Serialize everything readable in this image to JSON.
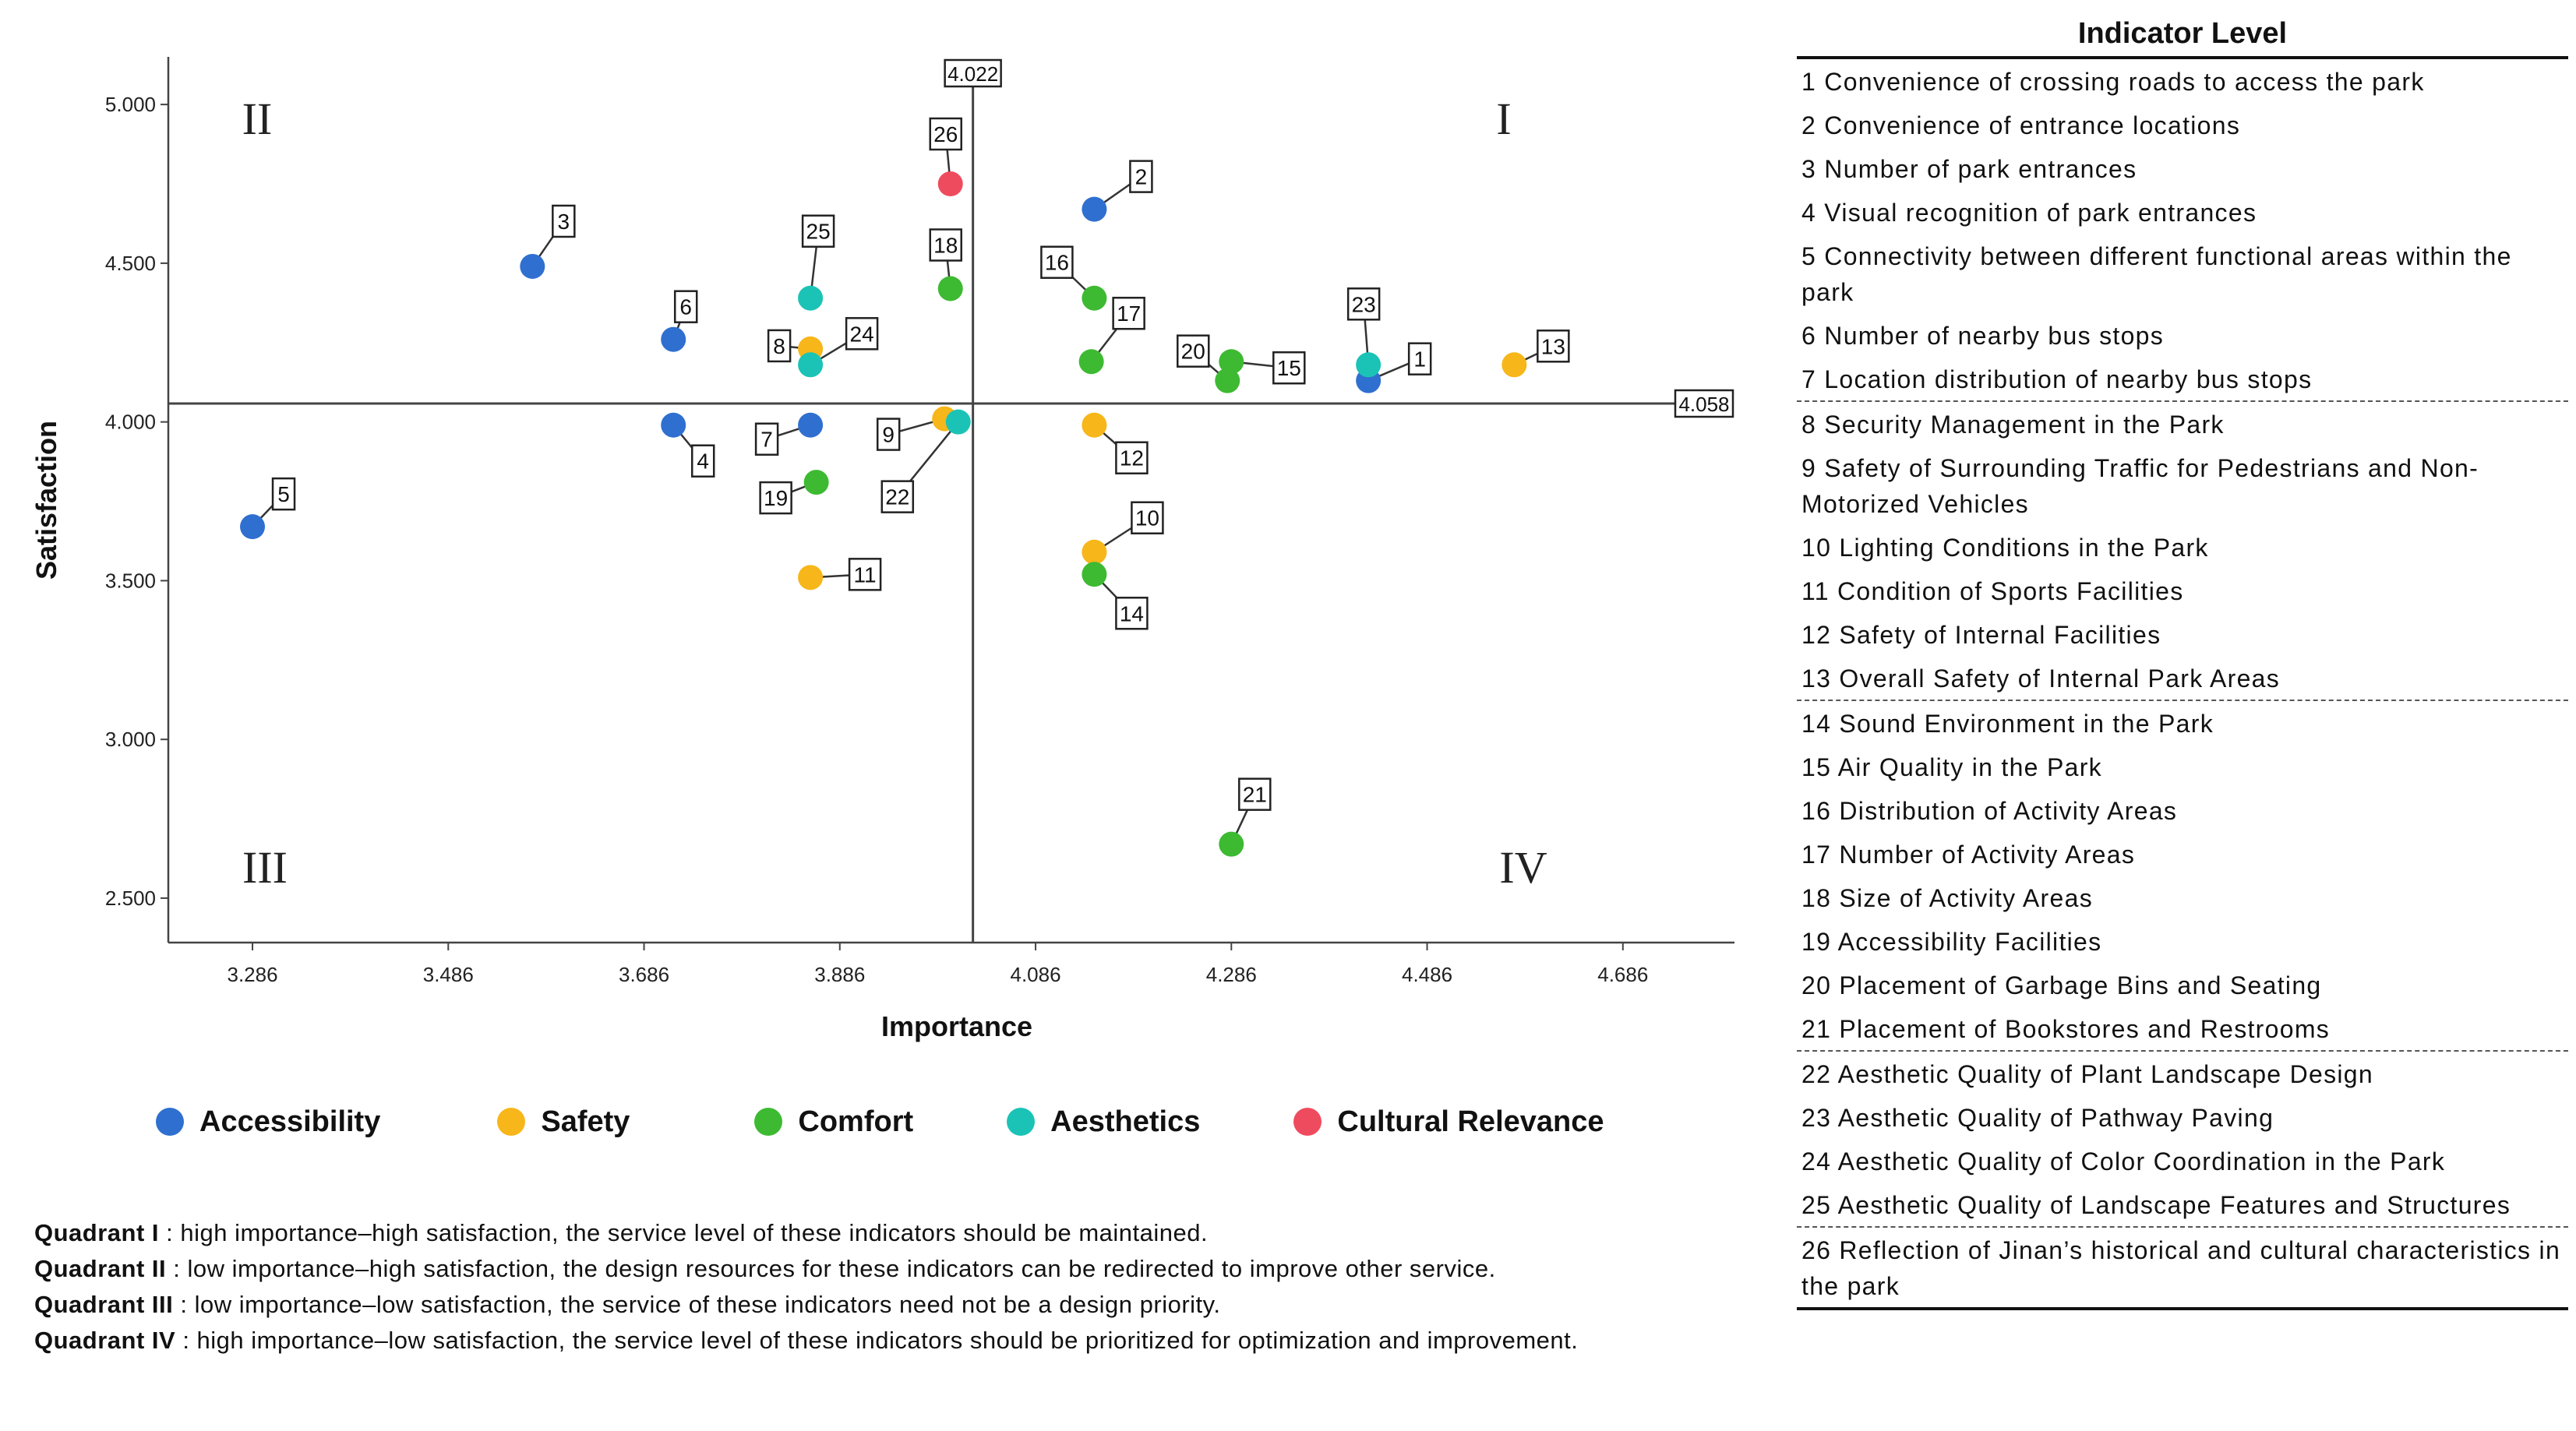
{
  "chart_data": {
    "type": "scatter",
    "xlabel": "Importance",
    "ylabel": "Satisfaction",
    "xlim": [
      3.2,
      4.8
    ],
    "ylim": [
      2.36,
      5.15
    ],
    "x_ticks": [
      "3.286",
      "3.486",
      "3.686",
      "3.886",
      "4.086",
      "4.286",
      "4.486",
      "4.686"
    ],
    "y_ticks": [
      "2.500",
      "3.000",
      "3.500",
      "4.000",
      "4.500",
      "5.000"
    ],
    "x_ref": {
      "value": 4.022,
      "label": "4.022"
    },
    "y_ref": {
      "value": 4.058,
      "label": "4.058"
    },
    "quadrants": {
      "I": "I",
      "II": "II",
      "III": "III",
      "IV": "IV"
    },
    "categories": [
      {
        "name": "Accessibility",
        "color": "#2f6fd0"
      },
      {
        "name": "Safety",
        "color": "#f7b619"
      },
      {
        "name": "Comfort",
        "color": "#3dba32"
      },
      {
        "name": "Aesthetics",
        "color": "#1bc3b6"
      },
      {
        "name": "Cultural Relevance",
        "color": "#ef4b5e"
      }
    ],
    "points": [
      {
        "id": "1",
        "x": 4.426,
        "y": 4.13,
        "category": "Accessibility"
      },
      {
        "id": "2",
        "x": 4.146,
        "y": 4.67,
        "category": "Accessibility"
      },
      {
        "id": "3",
        "x": 3.572,
        "y": 4.49,
        "category": "Accessibility"
      },
      {
        "id": "4",
        "x": 3.716,
        "y": 3.99,
        "category": "Accessibility"
      },
      {
        "id": "5",
        "x": 3.286,
        "y": 3.67,
        "category": "Accessibility"
      },
      {
        "id": "6",
        "x": 3.716,
        "y": 4.26,
        "category": "Accessibility"
      },
      {
        "id": "7",
        "x": 3.856,
        "y": 3.99,
        "category": "Accessibility"
      },
      {
        "id": "8",
        "x": 3.856,
        "y": 4.23,
        "category": "Safety"
      },
      {
        "id": "9",
        "x": 3.993,
        "y": 4.01,
        "category": "Safety"
      },
      {
        "id": "10",
        "x": 4.146,
        "y": 3.59,
        "category": "Safety"
      },
      {
        "id": "11",
        "x": 3.856,
        "y": 3.51,
        "category": "Safety"
      },
      {
        "id": "12",
        "x": 4.146,
        "y": 3.99,
        "category": "Safety"
      },
      {
        "id": "13",
        "x": 4.575,
        "y": 4.18,
        "category": "Safety"
      },
      {
        "id": "14",
        "x": 4.146,
        "y": 3.52,
        "category": "Comfort"
      },
      {
        "id": "15",
        "x": 4.286,
        "y": 4.19,
        "category": "Comfort"
      },
      {
        "id": "16",
        "x": 4.146,
        "y": 4.39,
        "category": "Comfort"
      },
      {
        "id": "17",
        "x": 4.143,
        "y": 4.19,
        "category": "Comfort"
      },
      {
        "id": "18",
        "x": 3.999,
        "y": 4.42,
        "category": "Comfort"
      },
      {
        "id": "19",
        "x": 3.862,
        "y": 3.81,
        "category": "Comfort"
      },
      {
        "id": "20",
        "x": 4.282,
        "y": 4.13,
        "category": "Comfort"
      },
      {
        "id": "21",
        "x": 4.286,
        "y": 2.67,
        "category": "Comfort"
      },
      {
        "id": "22",
        "x": 4.007,
        "y": 4.0,
        "category": "Aesthetics"
      },
      {
        "id": "23",
        "x": 4.426,
        "y": 4.18,
        "category": "Aesthetics"
      },
      {
        "id": "24",
        "x": 3.856,
        "y": 4.18,
        "category": "Aesthetics"
      },
      {
        "id": "25",
        "x": 3.856,
        "y": 4.39,
        "category": "Aesthetics"
      },
      {
        "id": "26",
        "x": 3.999,
        "y": 4.75,
        "category": "Cultural Relevance"
      }
    ]
  },
  "legend": [
    {
      "label": "Accessibility",
      "color": "#2f6fd0"
    },
    {
      "label": "Safety",
      "color": "#f7b619"
    },
    {
      "label": "Comfort",
      "color": "#3dba32"
    },
    {
      "label": "Aesthetics",
      "color": "#1bc3b6"
    },
    {
      "label": "Cultural Relevance",
      "color": "#ef4b5e"
    }
  ],
  "notes": [
    {
      "title": "Quadrant I",
      "text": ": high importance–high satisfaction, the service level of these indicators should be maintained."
    },
    {
      "title": "Quadrant II",
      "text": ": low importance–high satisfaction, the design resources for these indicators can be redirected to improve other service."
    },
    {
      "title": "Quadrant III",
      "text": ": low importance–low satisfaction, the service of these indicators need not be a design priority."
    },
    {
      "title": "Quadrant IV",
      "text": ": high importance–low satisfaction, the service level of these indicators should be prioritized for optimization and improvement."
    }
  ],
  "indicator_table": {
    "title": "Indicator Level",
    "rows": [
      "1 Convenience of crossing roads to access the park",
      "2 Convenience of entrance locations",
      "3 Number of park entrances",
      "4 Visual recognition of park entrances",
      "5 Connectivity between different functional areas within the park",
      "6 Number of nearby bus stops",
      "7 Location distribution of nearby bus stops",
      "8 Security Management in the Park",
      "9 Safety of Surrounding Traffic for Pedestrians and Non-Motorized Vehicles",
      "10 Lighting Conditions in the Park",
      "11 Condition of Sports Facilities",
      "12 Safety of Internal Facilities",
      "13 Overall Safety of Internal Park Areas",
      "14 Sound Environment in the Park",
      "15 Air Quality in the Park",
      "16 Distribution of Activity Areas",
      "17 Number of Activity Areas",
      "18 Size of Activity Areas",
      "19 Accessibility Facilities",
      "20 Placement of Garbage Bins and Seating",
      "21 Placement of Bookstores and Restrooms",
      "22 Aesthetic Quality of Plant Landscape Design",
      "23 Aesthetic Quality of Pathway Paving",
      "24 Aesthetic Quality of Color Coordination in the Park",
      "25 Aesthetic Quality of Landscape Features and Structures",
      "26 Reflection of Jinan’s historical and cultural characteristics in the park"
    ]
  }
}
